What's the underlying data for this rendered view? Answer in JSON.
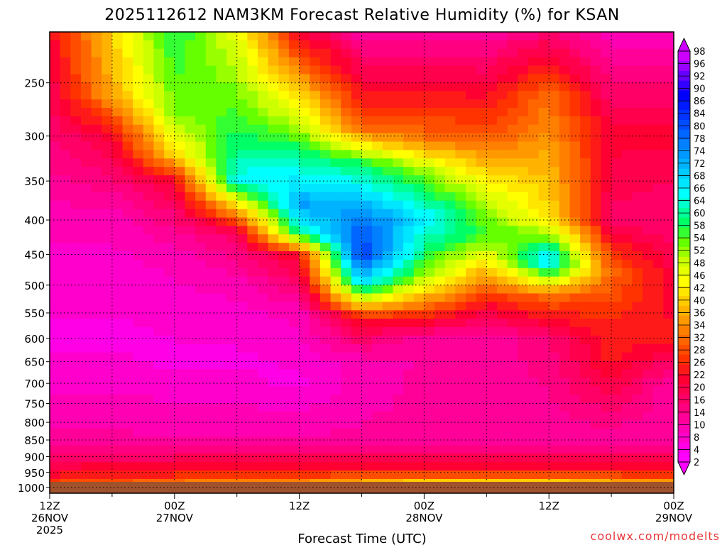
{
  "chart_data": {
    "type": "heatmap",
    "title": "2025112612 NAM3KM Forecast Relative Humidity (%) for KSAN",
    "xlabel": "Forecast Time (UTC)",
    "ylabel": "",
    "credit": "coolwx.com/modelts",
    "x_ticks": [
      {
        "line1": "12Z",
        "line2": "26NOV",
        "line3": "2025",
        "hour": 0
      },
      {
        "line1": "00Z",
        "line2": "27NOV",
        "line3": "",
        "hour": 12
      },
      {
        "line1": "12Z",
        "line2": "",
        "line3": "",
        "hour": 24
      },
      {
        "line1": "00Z",
        "line2": "28NOV",
        "line3": "",
        "hour": 36
      },
      {
        "line1": "12Z",
        "line2": "",
        "line3": "",
        "hour": 48
      },
      {
        "line1": "00Z",
        "line2": "29NOV",
        "line3": "",
        "hour": 60
      }
    ],
    "x_range_hours": [
      0,
      60
    ],
    "y_axis": "pressure (mb), logarithmic, decreasing upward",
    "y_ticks": [
      250,
      300,
      350,
      400,
      450,
      500,
      550,
      600,
      650,
      700,
      750,
      800,
      850,
      900,
      950,
      1000
    ],
    "y_range": [
      1020,
      210
    ],
    "colorbar": {
      "labels": [
        2,
        4,
        8,
        10,
        14,
        16,
        20,
        22,
        26,
        28,
        32,
        34,
        36,
        40,
        42,
        46,
        48,
        52,
        54,
        58,
        60,
        64,
        66,
        68,
        72,
        74,
        78,
        80,
        84,
        86,
        90,
        92,
        96,
        98
      ],
      "colors": [
        "#ff00ff",
        "#ff00e6",
        "#ff00cc",
        "#ff00b3",
        "#ff0099",
        "#ff0080",
        "#ff0066",
        "#ff004d",
        "#ff0033",
        "#ff1a1a",
        "#ff3300",
        "#ff4d00",
        "#ff6600",
        "#ff8000",
        "#ff9900",
        "#ffb300",
        "#ffcc00",
        "#ffe600",
        "#ffff00",
        "#e6ff00",
        "#ccff00",
        "#99ff00",
        "#66ff00",
        "#33ff33",
        "#00ff66",
        "#00ff99",
        "#00ffcc",
        "#00ffff",
        "#00e6ff",
        "#00ccff",
        "#00b3ff",
        "#0099ff",
        "#0080ff",
        "#0066ff",
        "#004dff",
        "#0033ff",
        "#001aff",
        "#0000ff",
        "#3300ff",
        "#6600ff",
        "#9900ff",
        "#cc00ff"
      ],
      "extend": "both"
    },
    "grid": true,
    "ground_color": "#a0522d",
    "rh_field": [
      {
        "hour": 0,
        "values_by_level": [
          {
            "p": 210,
            "rh": 20
          },
          {
            "p": 280,
            "rh": 16
          },
          {
            "p": 400,
            "rh": 8
          },
          {
            "p": 600,
            "rh": 4
          },
          {
            "p": 850,
            "rh": 10
          },
          {
            "p": 950,
            "rh": 20
          },
          {
            "p": 1000,
            "rh": 28
          }
        ]
      },
      {
        "hour": 6,
        "values_by_level": [
          {
            "p": 210,
            "rh": 40
          },
          {
            "p": 260,
            "rh": 36
          },
          {
            "p": 300,
            "rh": 20
          },
          {
            "p": 400,
            "rh": 8
          },
          {
            "p": 600,
            "rh": 4
          },
          {
            "p": 850,
            "rh": 10
          },
          {
            "p": 950,
            "rh": 22
          },
          {
            "p": 1000,
            "rh": 30
          }
        ]
      },
      {
        "hour": 12,
        "values_by_level": [
          {
            "p": 210,
            "rh": 58
          },
          {
            "p": 280,
            "rh": 52
          },
          {
            "p": 320,
            "rh": 40
          },
          {
            "p": 350,
            "rh": 20
          },
          {
            "p": 450,
            "rh": 8
          },
          {
            "p": 650,
            "rh": 4
          },
          {
            "p": 850,
            "rh": 10
          },
          {
            "p": 950,
            "rh": 22
          },
          {
            "p": 1000,
            "rh": 34
          }
        ]
      },
      {
        "hour": 18,
        "values_by_level": [
          {
            "p": 210,
            "rh": 46
          },
          {
            "p": 300,
            "rh": 58
          },
          {
            "p": 350,
            "rh": 66
          },
          {
            "p": 380,
            "rh": 40
          },
          {
            "p": 420,
            "rh": 16
          },
          {
            "p": 500,
            "rh": 8
          },
          {
            "p": 650,
            "rh": 4
          },
          {
            "p": 850,
            "rh": 10
          },
          {
            "p": 950,
            "rh": 24
          },
          {
            "p": 1000,
            "rh": 36
          }
        ]
      },
      {
        "hour": 24,
        "values_by_level": [
          {
            "p": 210,
            "rh": 20
          },
          {
            "p": 260,
            "rh": 40
          },
          {
            "p": 320,
            "rh": 60
          },
          {
            "p": 380,
            "rh": 74
          },
          {
            "p": 420,
            "rh": 60
          },
          {
            "p": 450,
            "rh": 22
          },
          {
            "p": 550,
            "rh": 8
          },
          {
            "p": 700,
            "rh": 4
          },
          {
            "p": 850,
            "rh": 10
          },
          {
            "p": 950,
            "rh": 24
          },
          {
            "p": 1000,
            "rh": 36
          }
        ]
      },
      {
        "hour": 30,
        "values_by_level": [
          {
            "p": 210,
            "rh": 10
          },
          {
            "p": 290,
            "rh": 28
          },
          {
            "p": 330,
            "rh": 58
          },
          {
            "p": 400,
            "rh": 78
          },
          {
            "p": 450,
            "rh": 86
          },
          {
            "p": 500,
            "rh": 66
          },
          {
            "p": 560,
            "rh": 22
          },
          {
            "p": 650,
            "rh": 8
          },
          {
            "p": 850,
            "rh": 10
          },
          {
            "p": 950,
            "rh": 24
          },
          {
            "p": 1000,
            "rh": 40
          }
        ]
      },
      {
        "hour": 36,
        "values_by_level": [
          {
            "p": 210,
            "rh": 10
          },
          {
            "p": 300,
            "rh": 30
          },
          {
            "p": 340,
            "rh": 52
          },
          {
            "p": 400,
            "rh": 68
          },
          {
            "p": 480,
            "rh": 52
          },
          {
            "p": 540,
            "rh": 30
          },
          {
            "p": 600,
            "rh": 10
          },
          {
            "p": 850,
            "rh": 10
          },
          {
            "p": 950,
            "rh": 24
          },
          {
            "p": 1000,
            "rh": 46
          }
        ]
      },
      {
        "hour": 42,
        "values_by_level": [
          {
            "p": 210,
            "rh": 10
          },
          {
            "p": 300,
            "rh": 28
          },
          {
            "p": 360,
            "rh": 46
          },
          {
            "p": 420,
            "rh": 56
          },
          {
            "p": 480,
            "rh": 36
          },
          {
            "p": 540,
            "rh": 20
          },
          {
            "p": 600,
            "rh": 10
          },
          {
            "p": 850,
            "rh": 10
          },
          {
            "p": 950,
            "rh": 24
          },
          {
            "p": 1000,
            "rh": 46
          }
        ]
      },
      {
        "hour": 48,
        "values_by_level": [
          {
            "p": 210,
            "rh": 14
          },
          {
            "p": 260,
            "rh": 30
          },
          {
            "p": 320,
            "rh": 36
          },
          {
            "p": 400,
            "rh": 42
          },
          {
            "p": 460,
            "rh": 70
          },
          {
            "p": 520,
            "rh": 30
          },
          {
            "p": 600,
            "rh": 14
          },
          {
            "p": 850,
            "rh": 10
          },
          {
            "p": 950,
            "rh": 24
          },
          {
            "p": 1000,
            "rh": 46
          }
        ]
      },
      {
        "hour": 54,
        "values_by_level": [
          {
            "p": 210,
            "rh": 8
          },
          {
            "p": 300,
            "rh": 20
          },
          {
            "p": 400,
            "rh": 16
          },
          {
            "p": 480,
            "rh": 30
          },
          {
            "p": 560,
            "rh": 24
          },
          {
            "p": 650,
            "rh": 22
          },
          {
            "p": 850,
            "rh": 10
          },
          {
            "p": 950,
            "rh": 24
          },
          {
            "p": 1000,
            "rh": 40
          }
        ]
      },
      {
        "hour": 60,
        "values_by_level": [
          {
            "p": 210,
            "rh": 8
          },
          {
            "p": 300,
            "rh": 20
          },
          {
            "p": 400,
            "rh": 14
          },
          {
            "p": 500,
            "rh": 20
          },
          {
            "p": 600,
            "rh": 22
          },
          {
            "p": 700,
            "rh": 10
          },
          {
            "p": 850,
            "rh": 10
          },
          {
            "p": 950,
            "rh": 22
          },
          {
            "p": 1000,
            "rh": 40
          }
        ]
      }
    ]
  }
}
